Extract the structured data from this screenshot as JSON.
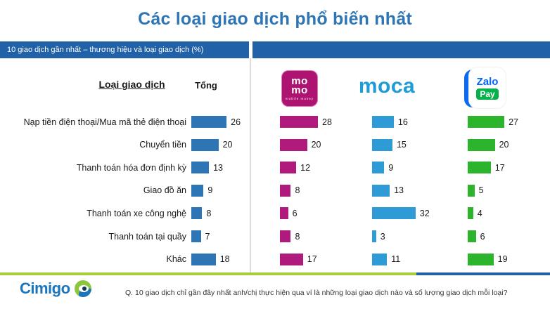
{
  "title": "Các loại giao dịch phổ biến nhất",
  "header_bar": {
    "label": "10 giao dịch gần nhất – thương hiệu và loại giao dịch (%)"
  },
  "table": {
    "category_header": "Loại giao dịch",
    "total_header": "Tổng"
  },
  "brands": {
    "momo": {
      "line1": "mo",
      "line2": "mo",
      "tagline": "mobile money",
      "bg_color": "#AE1372"
    },
    "moca": {
      "wordmark": "moca",
      "color": "#1E9CD7"
    },
    "zalopay": {
      "zalo": "Zalo",
      "pay": "Pay",
      "zalo_color": "#0068FF",
      "pay_bg_color": "#04B14A"
    }
  },
  "chart_data": {
    "type": "bar",
    "orientation": "horizontal",
    "title": "Các loại giao dịch phổ biến nhất",
    "subtitle": "10 giao dịch gần nhất – thương hiệu và loại giao dịch (%)",
    "unit": "%",
    "value_labels": true,
    "axis_visible": false,
    "xlim": [
      0,
      35
    ],
    "categories": [
      "Nạp tiền điện thoại/Mua mã thẻ điện thoại",
      "Chuyển tiền",
      "Thanh toán hóa đơn định kỳ",
      "Giao đồ ăn",
      "Thanh toán xe công nghệ",
      "Thanh toán tại quầy",
      "Khác"
    ],
    "series": [
      {
        "name": "Tổng",
        "color": "#2E75B6",
        "values": [
          26,
          20,
          13,
          9,
          8,
          7,
          18
        ]
      },
      {
        "name": "MoMo",
        "color": "#B01A7D",
        "values": [
          28,
          20,
          12,
          8,
          6,
          8,
          17
        ]
      },
      {
        "name": "Moca",
        "color": "#2E9BD6",
        "values": [
          16,
          15,
          9,
          13,
          32,
          3,
          11
        ]
      },
      {
        "name": "ZaloPay",
        "color": "#2DB42D",
        "values": [
          27,
          20,
          17,
          5,
          4,
          6,
          19
        ]
      }
    ]
  },
  "footer": {
    "brand": "Cimigo",
    "question": "Q. 10 giao dịch chỉ gần đây nhất anh/chị thực hiện qua ví là những loại giao dịch nào và số lượng giao dịch mỗi loại?",
    "line_green_color": "#A8CC3C",
    "line_blue_color": "#2061A8"
  }
}
